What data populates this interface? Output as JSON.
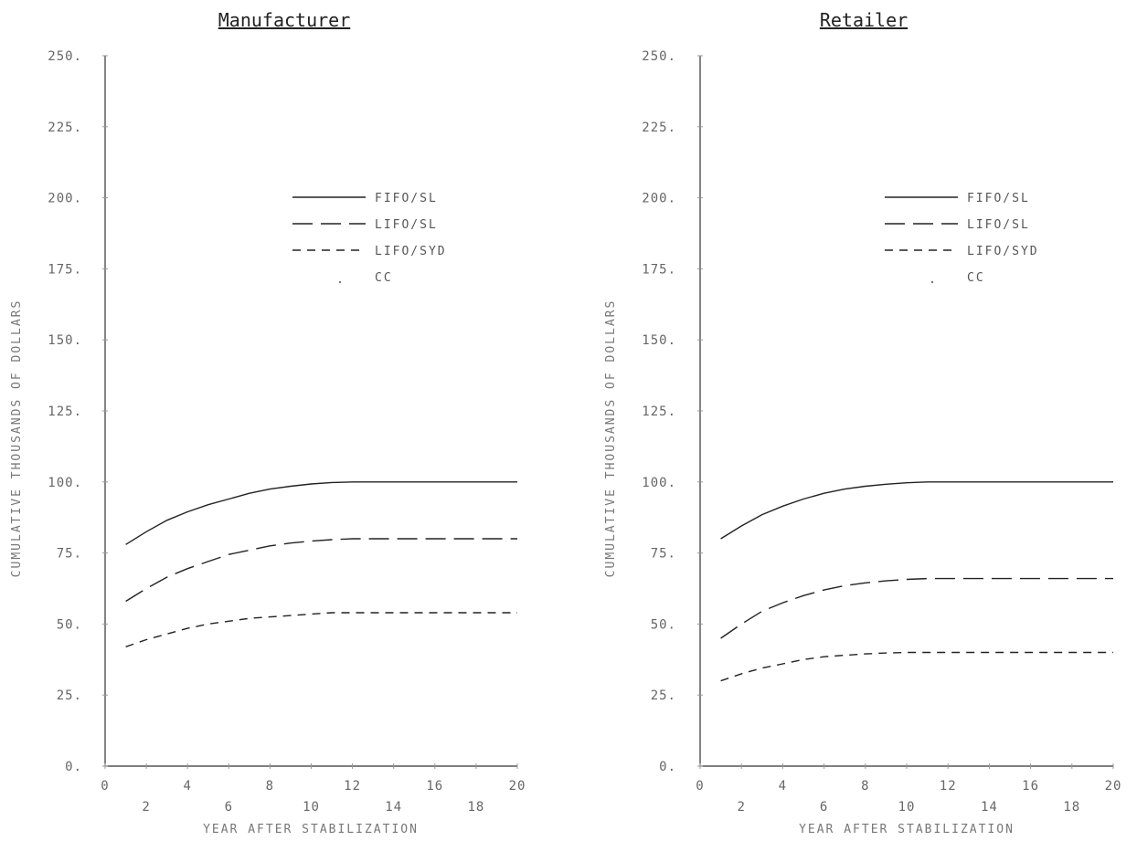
{
  "chart_data": [
    {
      "type": "line",
      "title": "Manufacturer",
      "xlabel": "YEAR AFTER STABILIZATION",
      "ylabel": "CUMULATIVE THOUSANDS OF DOLLARS",
      "xlim": [
        0,
        20
      ],
      "ylim": [
        0,
        250
      ],
      "x_ticks_top": [
        "0",
        "4",
        "8",
        "12",
        "16",
        "20"
      ],
      "x_ticks_bottom": [
        "2",
        "6",
        "10",
        "14",
        "18"
      ],
      "y_ticks": [
        "0.",
        "25.",
        "50.",
        "75.",
        "100.",
        "125.",
        "150.",
        "175.",
        "200.",
        "225.",
        "250."
      ],
      "legend": "upper-middle",
      "legend_entries": [
        "FIFO/SL",
        "LIFO/SL",
        "LIFO/SYD",
        "CC"
      ],
      "x": [
        1,
        2,
        3,
        4,
        5,
        6,
        7,
        8,
        9,
        10,
        11,
        12,
        13,
        14,
        15,
        16,
        17,
        18,
        19,
        20
      ],
      "series": [
        {
          "name": "FIFO/SL",
          "style": "solid",
          "values": [
            78,
            82.5,
            86.5,
            89.5,
            92,
            94,
            96,
            97.5,
            98.5,
            99.3,
            99.8,
            100,
            100,
            100,
            100,
            100,
            100,
            100,
            100,
            100
          ]
        },
        {
          "name": "LIFO/SL",
          "style": "long-dash",
          "values": [
            58,
            62.5,
            66.5,
            69.5,
            72,
            74.5,
            76,
            77.5,
            78.5,
            79.2,
            79.7,
            80,
            80,
            80,
            80,
            80,
            80,
            80,
            80,
            80
          ]
        },
        {
          "name": "LIFO/SYD",
          "style": "short-dash",
          "values": [
            42,
            44.5,
            46.5,
            48.5,
            50,
            51,
            52,
            52.5,
            53,
            53.5,
            54,
            54,
            54,
            54,
            54,
            54,
            54,
            54,
            54,
            54
          ]
        }
      ]
    },
    {
      "type": "line",
      "title": "Retailer",
      "xlabel": "YEAR AFTER STABILIZATION",
      "ylabel": "CUMULATIVE THOUSANDS OF DOLLARS",
      "xlim": [
        0,
        20
      ],
      "ylim": [
        0,
        250
      ],
      "x_ticks_top": [
        "0",
        "4",
        "8",
        "12",
        "16",
        "20"
      ],
      "x_ticks_bottom": [
        "2",
        "6",
        "10",
        "14",
        "18"
      ],
      "y_ticks": [
        "0.",
        "25.",
        "50.",
        "75.",
        "100.",
        "125.",
        "150.",
        "175.",
        "200.",
        "225.",
        "250."
      ],
      "legend": "upper-middle",
      "legend_entries": [
        "FIFO/SL",
        "LIFO/SL",
        "LIFO/SYD",
        "CC"
      ],
      "x": [
        1,
        2,
        3,
        4,
        5,
        6,
        7,
        8,
        9,
        10,
        11,
        12,
        13,
        14,
        15,
        16,
        17,
        18,
        19,
        20
      ],
      "series": [
        {
          "name": "FIFO/SL",
          "style": "solid",
          "values": [
            80,
            84.5,
            88.5,
            91.5,
            94,
            96,
            97.5,
            98.5,
            99.2,
            99.7,
            100,
            100,
            100,
            100,
            100,
            100,
            100,
            100,
            100,
            100
          ]
        },
        {
          "name": "LIFO/SL",
          "style": "long-dash",
          "values": [
            45,
            50,
            54.5,
            57.5,
            60,
            62,
            63.5,
            64.5,
            65.2,
            65.7,
            66,
            66,
            66,
            66,
            66,
            66,
            66,
            66,
            66,
            66
          ]
        },
        {
          "name": "LIFO/SYD",
          "style": "short-dash",
          "values": [
            30,
            32.5,
            34.5,
            36,
            37.5,
            38.5,
            39,
            39.5,
            39.8,
            40,
            40,
            40,
            40,
            40,
            40,
            40,
            40,
            40,
            40,
            40
          ]
        }
      ]
    }
  ]
}
